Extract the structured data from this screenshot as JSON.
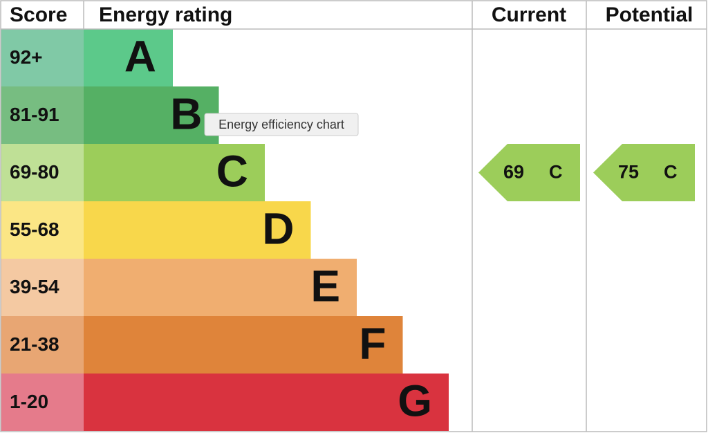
{
  "header": {
    "score": "Score",
    "rating": "Energy rating",
    "current": "Current",
    "potential": "Potential"
  },
  "bands": [
    {
      "score": "92+",
      "letter": "A",
      "color": "#5cc98a",
      "score_color": "#80c9a6"
    },
    {
      "score": "81-91",
      "letter": "B",
      "color": "#55b064",
      "score_color": "#77bd81"
    },
    {
      "score": "69-80",
      "letter": "C",
      "color": "#9ccd5a",
      "score_color": "#bfe096"
    },
    {
      "score": "55-68",
      "letter": "D",
      "color": "#f8d74b",
      "score_color": "#fbe685"
    },
    {
      "score": "39-54",
      "letter": "E",
      "color": "#f0ae70",
      "score_color": "#f4c9a2"
    },
    {
      "score": "21-38",
      "letter": "F",
      "color": "#df843a",
      "score_color": "#e8a673"
    },
    {
      "score": "1-20",
      "letter": "G",
      "color": "#d9333f",
      "score_color": "#e57b8b"
    }
  ],
  "current": {
    "score": 69,
    "rating": "C",
    "color": "#9ccd5a"
  },
  "potential": {
    "score": 75,
    "rating": "C",
    "color": "#9ccd5a"
  },
  "tooltip": "Energy efficiency chart"
}
